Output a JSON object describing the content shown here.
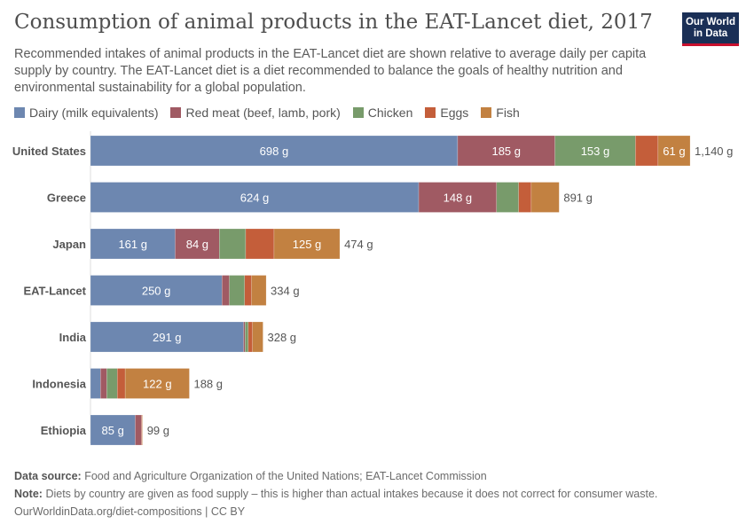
{
  "title": "Consumption of animal products in the EAT-Lancet diet, 2017",
  "subtitle": "Recommended intakes of animal products in the EAT-Lancet diet are shown relative to average daily per capita supply by country. The EAT-Lancet diet is a diet recommended to balance the goals of healthy nutrition and environmental sustainability for a global population.",
  "logo": "Our World in Data",
  "footer": {
    "source_label": "Data source:",
    "source": "Food and Agriculture Organization of the United Nations; EAT-Lancet Commission",
    "note_label": "Note:",
    "note": "Diets by country are given as food supply – this is higher than actual intakes because it does not correct for consumer waste.",
    "url": "OurWorldinData.org/diet-compositions | CC BY"
  },
  "chart_data": {
    "type": "bar",
    "orientation": "horizontal",
    "stacked": true,
    "unit": "g",
    "legend_position": "top",
    "categories": [
      "United States",
      "Greece",
      "Japan",
      "EAT-Lancet",
      "India",
      "Indonesia",
      "Ethiopia"
    ],
    "totals": [
      1140,
      891,
      474,
      334,
      328,
      188,
      99
    ],
    "series": [
      {
        "name": "Dairy (milk equivalents)",
        "color": "#6d87b0",
        "values": [
          698,
          624,
          161,
          250,
          291,
          19,
          85
        ]
      },
      {
        "name": "Red meat (beef, lamb, pork)",
        "color": "#a05a63",
        "values": [
          185,
          148,
          84,
          14,
          3,
          12,
          12
        ]
      },
      {
        "name": "Chicken",
        "color": "#789b6b",
        "values": [
          153,
          42,
          50,
          29,
          6,
          20,
          0
        ]
      },
      {
        "name": "Eggs",
        "color": "#c45e3a",
        "values": [
          43,
          24,
          54,
          13,
          8,
          15,
          1
        ]
      },
      {
        "name": "Fish",
        "color": "#c28141",
        "values": [
          61,
          53,
          125,
          28,
          20,
          122,
          1
        ]
      }
    ]
  }
}
